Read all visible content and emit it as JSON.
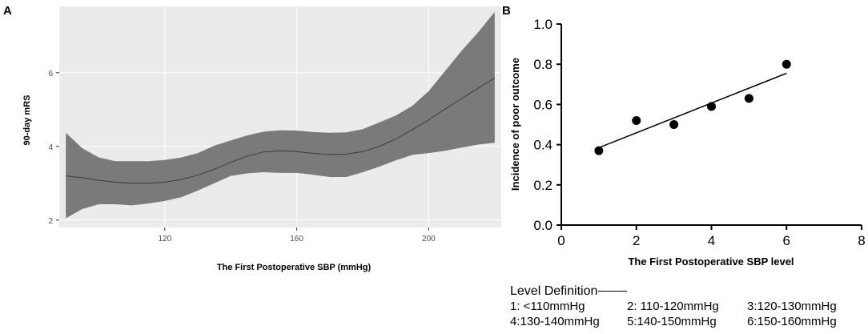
{
  "panel_a": {
    "label": "A",
    "chart_data": {
      "type": "area",
      "title": "",
      "xlabel": "The First Postoperative SBP (mmHg)",
      "ylabel": "90-day mRS",
      "xlim": [
        88,
        222
      ],
      "ylim": [
        1.8,
        7.8
      ],
      "xticks": [
        120,
        160,
        200
      ],
      "yticks": [
        2,
        4,
        6
      ],
      "grid": true,
      "series": [
        {
          "name": "fitted",
          "x": [
            90,
            95,
            100,
            105,
            110,
            115,
            120,
            125,
            130,
            135,
            140,
            145,
            150,
            155,
            160,
            165,
            170,
            175,
            180,
            185,
            190,
            195,
            200,
            205,
            210,
            215,
            220
          ],
          "y": [
            3.2,
            3.15,
            3.08,
            3.03,
            3.0,
            3.0,
            3.03,
            3.1,
            3.22,
            3.38,
            3.57,
            3.74,
            3.85,
            3.88,
            3.86,
            3.81,
            3.78,
            3.79,
            3.86,
            4.0,
            4.2,
            4.45,
            4.72,
            5.02,
            5.3,
            5.58,
            5.86
          ],
          "lower": [
            2.05,
            2.3,
            2.43,
            2.43,
            2.4,
            2.45,
            2.52,
            2.62,
            2.8,
            3.0,
            3.2,
            3.27,
            3.3,
            3.28,
            3.28,
            3.23,
            3.17,
            3.17,
            3.3,
            3.45,
            3.62,
            3.77,
            3.82,
            3.88,
            3.97,
            4.05,
            4.1
          ],
          "upper": [
            4.37,
            3.95,
            3.7,
            3.6,
            3.6,
            3.6,
            3.63,
            3.7,
            3.82,
            4.02,
            4.16,
            4.3,
            4.4,
            4.44,
            4.43,
            4.39,
            4.37,
            4.38,
            4.47,
            4.65,
            4.84,
            5.1,
            5.5,
            6.05,
            6.6,
            7.1,
            7.65
          ]
        }
      ]
    }
  },
  "panel_b": {
    "label": "B",
    "chart_data": {
      "type": "scatter",
      "title": "",
      "xlabel": "The First Postoperative SBP level",
      "ylabel": "Incidence of poor outcome",
      "xlim": [
        0,
        8
      ],
      "ylim": [
        0.0,
        1.0
      ],
      "xticks": [
        "0",
        "2",
        "4",
        "6",
        "8"
      ],
      "yticks": [
        "0.0",
        "0.2",
        "0.4",
        "0.6",
        "0.8",
        "1.0"
      ],
      "grid": false,
      "series": [
        {
          "name": "observed",
          "x": [
            1,
            2,
            3,
            4,
            5,
            6
          ],
          "y": [
            0.37,
            0.52,
            0.5,
            0.59,
            0.63,
            0.8
          ]
        },
        {
          "name": "fit",
          "x": [
            1,
            6
          ],
          "y": [
            0.385,
            0.755
          ]
        }
      ]
    }
  },
  "legend": {
    "title": "Level Definition",
    "items": [
      "1: <110mmHg",
      "2: 110-120mmHg",
      "3:120-130mmHg",
      "4:130-140mmHg",
      "5:140-150mmHg",
      "6:150-160mmHg"
    ]
  },
  "colors": {
    "panel_bg": "#ebebeb",
    "grid": "#ffffff",
    "band": "#7a7a7a",
    "line": "#3c3c3c",
    "tick_text": "#4d4d4d",
    "axis": "#000000"
  }
}
